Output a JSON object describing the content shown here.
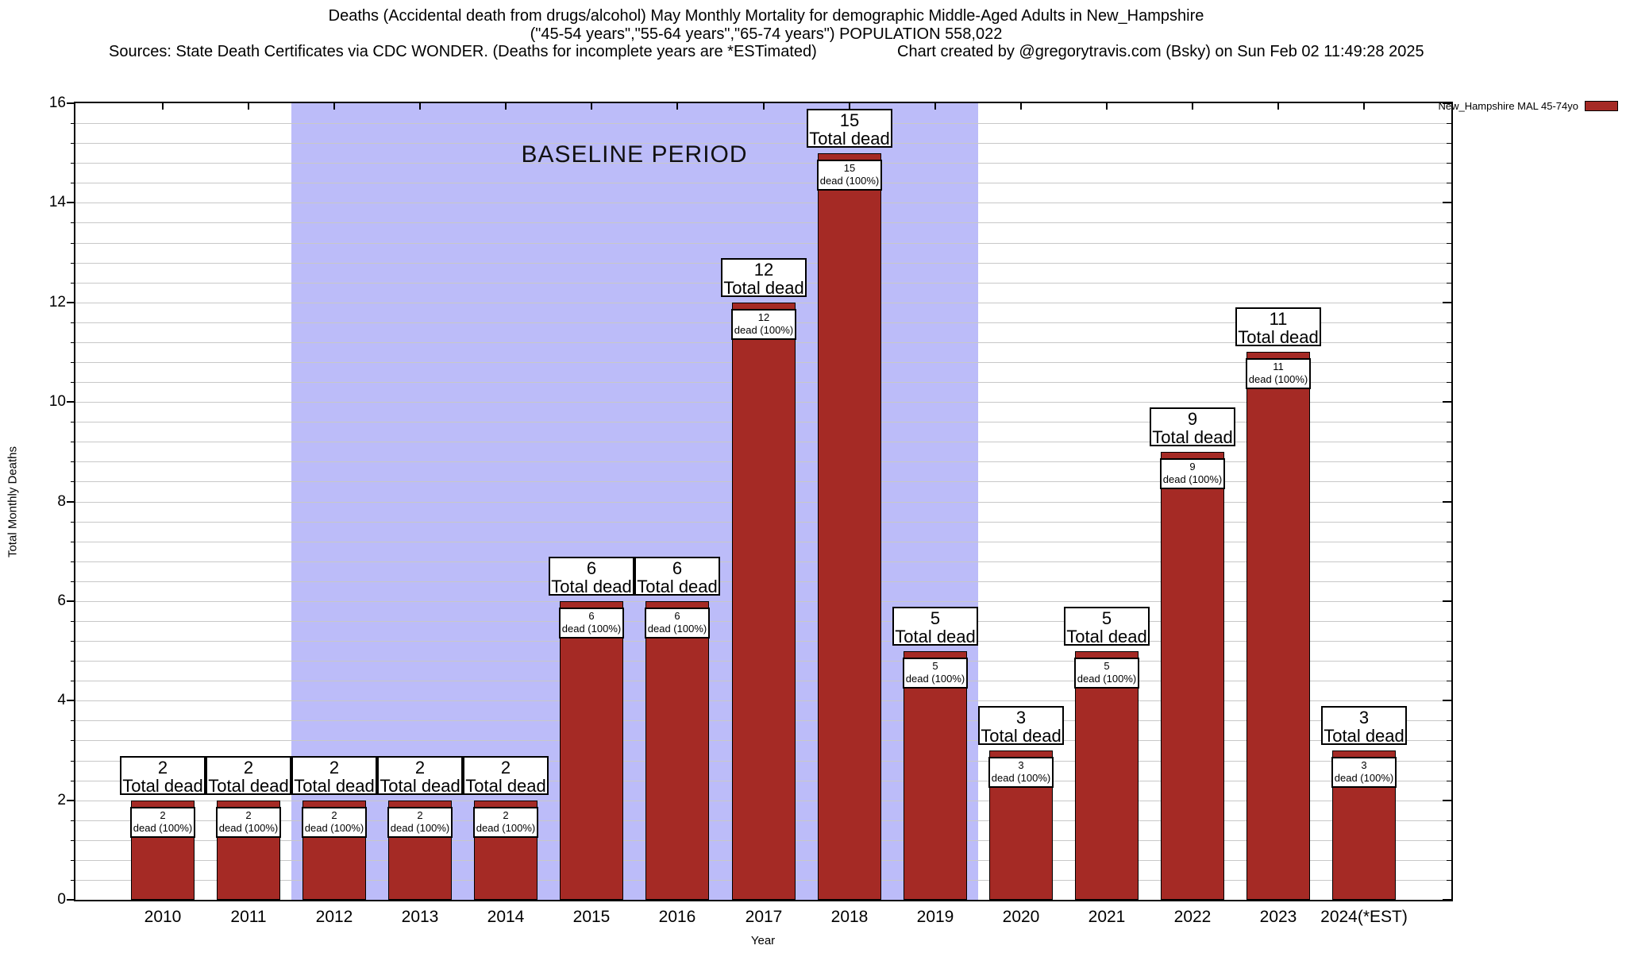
{
  "header": {
    "title_line1": "Deaths (Accidental death from drugs/alcohol) May Monthly Mortality for demographic Middle-Aged Adults in New_Hampshire",
    "title_line2": "(\"45-54 years\",\"55-64 years\",\"65-74 years\") POPULATION 558,022",
    "sources": "Sources: State Death Certificates via CDC WONDER. (Deaths for incomplete years are *ESTimated)",
    "credit": "Chart created by @gregorytravis.com (Bsky) on Sun Feb 02 11:49:28 2025"
  },
  "legend": {
    "label": "New_Hampshire MAL 45-74yo",
    "swatch_color": "#a52a25"
  },
  "chart_data": {
    "type": "bar",
    "title": "Deaths (Accidental death from drugs/alcohol) May Monthly Mortality for demographic Middle-Aged Adults in New_Hampshire",
    "categories": [
      "2010",
      "2011",
      "2012",
      "2013",
      "2014",
      "2015",
      "2016",
      "2017",
      "2018",
      "2019",
      "2020",
      "2021",
      "2022",
      "2023",
      "2024(*EST)"
    ],
    "values": [
      2,
      2,
      2,
      2,
      2,
      6,
      6,
      12,
      15,
      5,
      3,
      5,
      9,
      11,
      3
    ],
    "series_label": "New_Hampshire MAL 45-74yo",
    "xlabel": "Year",
    "ylabel": "Total Monthly Deaths",
    "ylim": [
      0,
      16
    ],
    "ytick_step": 2,
    "minor_grid_step": 0.4,
    "grid": true,
    "legend_position": "top-right-outside",
    "bar_top_label_suffix": "Total dead",
    "bar_inner_label_suffix": "dead (100%)",
    "baseline": {
      "label": "BASELINE PERIOD",
      "from_category": "2012",
      "to_category": "2019",
      "from_index": 2,
      "to_index": 9
    },
    "colors": {
      "bar": "#a52a25",
      "baseline_shade": "#bcbcf9",
      "grid": "#c8c8c8",
      "border": "#000000"
    }
  }
}
